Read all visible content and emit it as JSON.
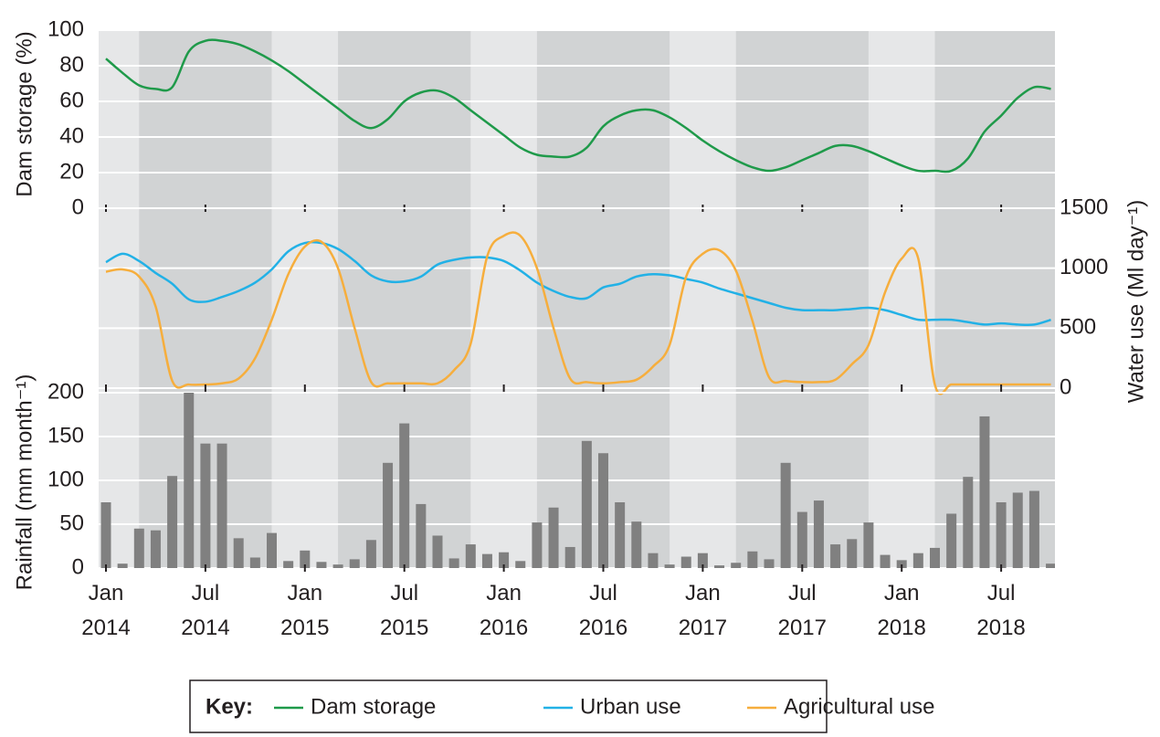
{
  "chart_data": [
    {
      "type": "line",
      "ylabel": "Dam storage (%)",
      "y_axis_position": "left",
      "ylim": [
        0,
        100
      ],
      "yticks": [
        0,
        20,
        40,
        60,
        80,
        100
      ],
      "grid": true,
      "x": [
        "2014-01",
        "2014-02",
        "2014-03",
        "2014-04",
        "2014-05",
        "2014-06",
        "2014-07",
        "2014-08",
        "2014-09",
        "2014-10",
        "2014-11",
        "2014-12",
        "2015-01",
        "2015-02",
        "2015-03",
        "2015-04",
        "2015-05",
        "2015-06",
        "2015-07",
        "2015-08",
        "2015-09",
        "2015-10",
        "2015-11",
        "2015-12",
        "2016-01",
        "2016-02",
        "2016-03",
        "2016-04",
        "2016-05",
        "2016-06",
        "2016-07",
        "2016-08",
        "2016-09",
        "2016-10",
        "2016-11",
        "2016-12",
        "2017-01",
        "2017-02",
        "2017-03",
        "2017-04",
        "2017-05",
        "2017-06",
        "2017-07",
        "2017-08",
        "2017-09",
        "2017-10",
        "2017-11",
        "2017-12",
        "2018-01",
        "2018-02",
        "2018-03",
        "2018-04",
        "2018-05",
        "2018-06",
        "2018-07",
        "2018-08",
        "2018-09",
        "2018-10"
      ],
      "series": [
        {
          "name": "Dam storage",
          "color": "#1f9a4a",
          "values": [
            84,
            76,
            69,
            67,
            68,
            88,
            94,
            94,
            92,
            88,
            83,
            77,
            70,
            63,
            56,
            49,
            45,
            50,
            60,
            65,
            66,
            62,
            55,
            48,
            41,
            34,
            30,
            29,
            29,
            34,
            46,
            52,
            55,
            55,
            51,
            45,
            38,
            32,
            27,
            23,
            21,
            23,
            27,
            31,
            35,
            35,
            32,
            28,
            24,
            21,
            21,
            21,
            28,
            43,
            52,
            62,
            68,
            67
          ]
        }
      ]
    },
    {
      "type": "line",
      "ylabel": "Water use (Ml day⁻¹)",
      "y_axis_position": "right",
      "ylim": [
        0,
        1500
      ],
      "yticks": [
        0,
        500,
        1000,
        1500
      ],
      "grid": true,
      "x": [
        "2014-01",
        "2014-02",
        "2014-03",
        "2014-04",
        "2014-05",
        "2014-06",
        "2014-07",
        "2014-08",
        "2014-09",
        "2014-10",
        "2014-11",
        "2014-12",
        "2015-01",
        "2015-02",
        "2015-03",
        "2015-04",
        "2015-05",
        "2015-06",
        "2015-07",
        "2015-08",
        "2015-09",
        "2015-10",
        "2015-11",
        "2015-12",
        "2016-01",
        "2016-02",
        "2016-03",
        "2016-04",
        "2016-05",
        "2016-06",
        "2016-07",
        "2016-08",
        "2016-09",
        "2016-10",
        "2016-11",
        "2016-12",
        "2017-01",
        "2017-02",
        "2017-03",
        "2017-04",
        "2017-05",
        "2017-06",
        "2017-07",
        "2017-08",
        "2017-09",
        "2017-10",
        "2017-11",
        "2017-12",
        "2018-01",
        "2018-02",
        "2018-03",
        "2018-04",
        "2018-05",
        "2018-06",
        "2018-07",
        "2018-08",
        "2018-09",
        "2018-10"
      ],
      "series": [
        {
          "name": "Urban use",
          "color": "#22b1e6",
          "values": [
            1050,
            1120,
            1060,
            960,
            870,
            740,
            720,
            760,
            810,
            880,
            990,
            1140,
            1210,
            1210,
            1160,
            1060,
            940,
            890,
            890,
            930,
            1030,
            1070,
            1090,
            1090,
            1060,
            980,
            880,
            810,
            760,
            750,
            840,
            870,
            930,
            950,
            940,
            910,
            880,
            830,
            790,
            750,
            710,
            670,
            650,
            650,
            650,
            660,
            670,
            650,
            610,
            570,
            570,
            570,
            550,
            530,
            540,
            530,
            530,
            570
          ]
        },
        {
          "name": "Agricultural use",
          "color": "#f6ae3d",
          "values": [
            970,
            990,
            930,
            680,
            60,
            30,
            30,
            40,
            80,
            250,
            570,
            950,
            1180,
            1220,
            1000,
            500,
            50,
            40,
            40,
            40,
            40,
            150,
            370,
            1100,
            1270,
            1270,
            1000,
            500,
            80,
            50,
            40,
            50,
            70,
            180,
            360,
            930,
            1120,
            1150,
            980,
            560,
            90,
            60,
            50,
            50,
            70,
            200,
            360,
            800,
            1080,
            1080,
            30,
            30,
            30,
            30,
            30,
            30,
            30,
            30
          ]
        }
      ]
    },
    {
      "type": "bar",
      "ylabel": "Rainfall (mm month⁻¹)",
      "y_axis_position": "left",
      "ylim": [
        0,
        200
      ],
      "yticks": [
        0,
        50,
        100,
        150,
        200
      ],
      "grid": true,
      "color": "#808080",
      "x": [
        "2014-01",
        "2014-02",
        "2014-03",
        "2014-04",
        "2014-05",
        "2014-06",
        "2014-07",
        "2014-08",
        "2014-09",
        "2014-10",
        "2014-11",
        "2014-12",
        "2015-01",
        "2015-02",
        "2015-03",
        "2015-04",
        "2015-05",
        "2015-06",
        "2015-07",
        "2015-08",
        "2015-09",
        "2015-10",
        "2015-11",
        "2015-12",
        "2016-01",
        "2016-02",
        "2016-03",
        "2016-04",
        "2016-05",
        "2016-06",
        "2016-07",
        "2016-08",
        "2016-09",
        "2016-10",
        "2016-11",
        "2016-12",
        "2017-01",
        "2017-02",
        "2017-03",
        "2017-04",
        "2017-05",
        "2017-06",
        "2017-07",
        "2017-08",
        "2017-09",
        "2017-10",
        "2017-11",
        "2017-12",
        "2018-01",
        "2018-02",
        "2018-03",
        "2018-04",
        "2018-05",
        "2018-06",
        "2018-07",
        "2018-08",
        "2018-09",
        "2018-10"
      ],
      "values": [
        75,
        5,
        45,
        43,
        105,
        200,
        142,
        142,
        34,
        12,
        40,
        8,
        20,
        7,
        4,
        10,
        32,
        120,
        165,
        73,
        37,
        11,
        27,
        16,
        18,
        8,
        52,
        69,
        24,
        145,
        131,
        75,
        53,
        17,
        4,
        13,
        17,
        3,
        6,
        19,
        10,
        120,
        64,
        77,
        27,
        33,
        52,
        15,
        9,
        17,
        23,
        62,
        104,
        173,
        75,
        86,
        88,
        5
      ],
      "xticks": [
        {
          "value": "2014-01",
          "label": "Jan 2014"
        },
        {
          "value": "2014-07",
          "label": "Jul 2014"
        },
        {
          "value": "2015-01",
          "label": "Jan 2015"
        },
        {
          "value": "2015-07",
          "label": "Jul 2015"
        },
        {
          "value": "2016-01",
          "label": "Jan 2016"
        },
        {
          "value": "2016-07",
          "label": "Jul 2016"
        },
        {
          "value": "2017-01",
          "label": "Jan 2017"
        },
        {
          "value": "2017-07",
          "label": "Jul 2017"
        },
        {
          "value": "2018-01",
          "label": "Jan 2018"
        },
        {
          "value": "2018-07",
          "label": "Jul 2018"
        }
      ]
    }
  ],
  "legend": {
    "title": "Key:",
    "position": "bottom"
  }
}
